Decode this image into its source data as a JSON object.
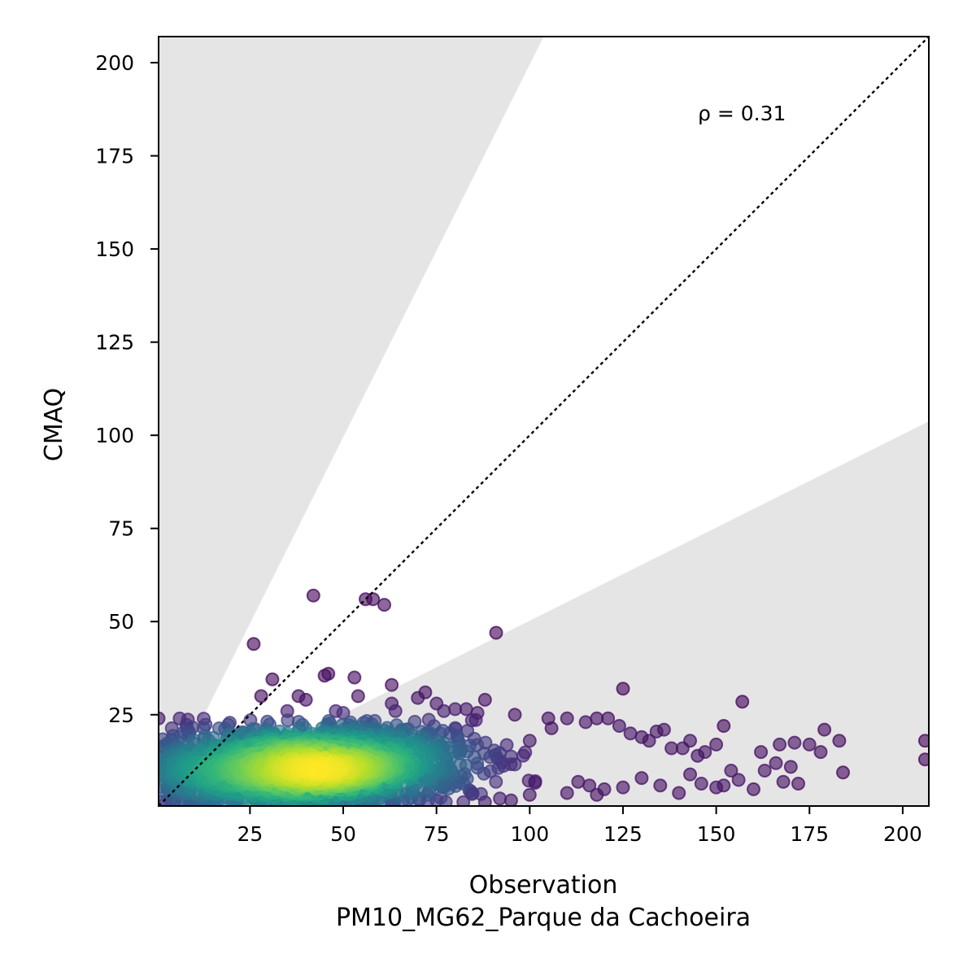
{
  "chart_data": {
    "type": "scatter",
    "title": "",
    "xlabel": "Observation",
    "xlabel_sub": "PM10_MG62_Parque da Cachoeira",
    "ylabel": "CMAQ",
    "xlim": [
      0.5,
      207
    ],
    "ylim": [
      0.5,
      207
    ],
    "xticks": [
      25,
      50,
      75,
      100,
      125,
      150,
      175,
      200
    ],
    "yticks": [
      25,
      50,
      75,
      100,
      125,
      150,
      175,
      200
    ],
    "grid": false,
    "legend": "none",
    "annotation": "ρ = 0.31",
    "reference_line": "1:1 dotted",
    "shaded_regions": "outside factor-of-2 band (y > 2x and y < x/2)",
    "colormap": "density (viridis)",
    "colors": {
      "shade": "#e5e5e5",
      "low_density": "#440154",
      "mid_density": "#21918c",
      "high_density": "#fde725",
      "axis": "#000000"
    },
    "notable_points": [
      [
        0.5,
        24
      ],
      [
        26,
        44
      ],
      [
        28,
        30
      ],
      [
        31,
        34.5
      ],
      [
        35,
        26
      ],
      [
        38,
        30
      ],
      [
        40,
        29
      ],
      [
        42,
        57
      ],
      [
        45,
        35.5
      ],
      [
        46,
        36
      ],
      [
        48,
        26
      ],
      [
        50,
        25.5
      ],
      [
        53,
        35
      ],
      [
        54,
        30
      ],
      [
        56,
        56
      ],
      [
        58,
        56
      ],
      [
        61,
        54.5
      ],
      [
        63,
        33
      ],
      [
        63,
        28
      ],
      [
        64,
        26
      ],
      [
        70,
        29.5
      ],
      [
        72,
        31
      ],
      [
        75,
        28
      ],
      [
        77,
        26
      ],
      [
        80,
        26.5
      ],
      [
        83,
        26.5
      ],
      [
        86,
        25.5
      ],
      [
        88,
        29
      ],
      [
        91,
        47
      ],
      [
        96,
        25
      ],
      [
        100,
        18
      ],
      [
        105,
        24
      ],
      [
        110,
        24
      ],
      [
        115,
        23
      ],
      [
        118,
        24
      ],
      [
        121,
        24
      ],
      [
        124,
        22
      ],
      [
        125,
        32
      ],
      [
        127,
        20
      ],
      [
        130,
        19
      ],
      [
        132,
        18
      ],
      [
        134,
        20.5
      ],
      [
        136,
        21
      ],
      [
        138,
        16
      ],
      [
        141,
        16
      ],
      [
        143,
        18
      ],
      [
        145,
        14
      ],
      [
        147,
        15
      ],
      [
        150,
        17
      ],
      [
        152,
        22
      ],
      [
        154,
        10
      ],
      [
        157,
        28.5
      ],
      [
        162,
        15
      ],
      [
        167,
        17
      ],
      [
        171,
        17.5
      ],
      [
        175,
        17
      ],
      [
        179,
        21
      ],
      [
        183,
        18
      ],
      [
        184,
        9.5
      ],
      [
        206,
        18
      ],
      [
        206,
        13
      ],
      [
        120,
        5
      ],
      [
        125,
        5.5
      ],
      [
        130,
        8
      ],
      [
        135,
        6
      ],
      [
        140,
        4
      ],
      [
        143,
        9
      ],
      [
        146,
        6.5
      ],
      [
        150,
        5.5
      ],
      [
        152,
        6
      ],
      [
        156,
        7.5
      ],
      [
        160,
        5
      ],
      [
        163,
        10
      ],
      [
        166,
        12
      ],
      [
        168,
        7
      ],
      [
        170,
        11
      ],
      [
        172,
        6.5
      ],
      [
        178,
        15
      ],
      [
        95,
        2
      ],
      [
        100,
        3.5
      ],
      [
        110,
        4
      ],
      [
        113,
        7
      ],
      [
        116,
        6
      ],
      [
        118,
        3.5
      ],
      [
        75,
        2
      ],
      [
        88,
        1.5
      ],
      [
        92,
        2.5
      ],
      [
        60,
        1.5
      ],
      [
        45,
        2
      ]
    ],
    "density_cloud": {
      "n": 1700,
      "center_obs": 40,
      "spread_obs": 22,
      "cmaq_mean": 11,
      "cmaq_spread": 5.5,
      "cmaq_trend_per_obs": 0.03
    }
  }
}
